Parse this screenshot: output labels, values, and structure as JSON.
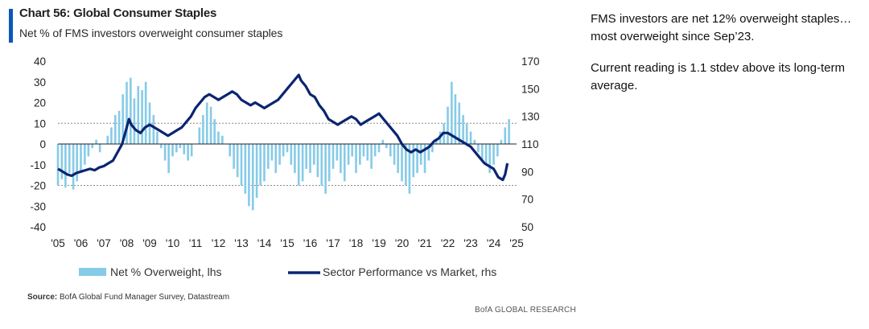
{
  "title": "Chart 56: Global Consumer Staples",
  "subtitle": "Net % of FMS investors overweight consumer staples",
  "notes": [
    "FMS investors are net 12% overweight staples…most overweight since Sep’23.",
    "Current reading is 1.1 stdev above its long-term average."
  ],
  "source_label": "Source:",
  "source_text": "BofA Global Fund Manager Survey, Datastream",
  "brand": "BofA GLOBAL RESEARCH",
  "colors": {
    "bars": "#86cbe8",
    "line": "#0b2570",
    "title_accent": "#0a58b8"
  },
  "chart_data": {
    "type": "bar+line",
    "x_tick_labels": [
      "'05",
      "'06",
      "'07",
      "'08",
      "'09",
      "'10",
      "'11",
      "'12",
      "'13",
      "'14",
      "'15",
      "'16",
      "'17",
      "'18",
      "'19",
      "'20",
      "'21",
      "'22",
      "'23",
      "'24",
      "'25"
    ],
    "x_range": [
      2005.0,
      2025.0
    ],
    "lhs": {
      "ylim": [
        -40,
        40
      ],
      "ticks": [
        40,
        30,
        20,
        10,
        0,
        -10,
        -20,
        -30,
        -40
      ]
    },
    "rhs": {
      "ylim": [
        50,
        170
      ],
      "ticks": [
        170,
        150,
        130,
        110,
        90,
        70,
        50
      ]
    },
    "reference_lines_lhs": [
      10,
      -20
    ],
    "legend": [
      "Net % Overweight, lhs",
      "Sector Performance vs Market, rhs"
    ],
    "series": [
      {
        "name": "Net % Overweight, lhs",
        "kind": "bar",
        "axis": "lhs",
        "points": [
          [
            2005.0,
            -20
          ],
          [
            2005.17,
            -17
          ],
          [
            2005.33,
            -21
          ],
          [
            2005.5,
            -14
          ],
          [
            2005.67,
            -22
          ],
          [
            2005.83,
            -18
          ],
          [
            2006.0,
            -14
          ],
          [
            2006.17,
            -10
          ],
          [
            2006.33,
            -6
          ],
          [
            2006.5,
            -2
          ],
          [
            2006.67,
            2
          ],
          [
            2006.83,
            -4
          ],
          [
            2007.0,
            0
          ],
          [
            2007.17,
            4
          ],
          [
            2007.33,
            8
          ],
          [
            2007.5,
            14
          ],
          [
            2007.67,
            16
          ],
          [
            2007.83,
            24
          ],
          [
            2008.0,
            30
          ],
          [
            2008.17,
            32
          ],
          [
            2008.33,
            22
          ],
          [
            2008.5,
            28
          ],
          [
            2008.67,
            26
          ],
          [
            2008.83,
            30
          ],
          [
            2009.0,
            20
          ],
          [
            2009.17,
            14
          ],
          [
            2009.33,
            6
          ],
          [
            2009.5,
            -2
          ],
          [
            2009.67,
            -8
          ],
          [
            2009.83,
            -14
          ],
          [
            2010.0,
            -6
          ],
          [
            2010.17,
            -4
          ],
          [
            2010.33,
            -2
          ],
          [
            2010.5,
            -5
          ],
          [
            2010.67,
            -8
          ],
          [
            2010.83,
            -6
          ],
          [
            2011.0,
            0
          ],
          [
            2011.17,
            8
          ],
          [
            2011.33,
            14
          ],
          [
            2011.5,
            20
          ],
          [
            2011.67,
            18
          ],
          [
            2011.83,
            12
          ],
          [
            2012.0,
            6
          ],
          [
            2012.17,
            4
          ],
          [
            2012.33,
            0
          ],
          [
            2012.5,
            -6
          ],
          [
            2012.67,
            -12
          ],
          [
            2012.83,
            -16
          ],
          [
            2013.0,
            -20
          ],
          [
            2013.17,
            -24
          ],
          [
            2013.33,
            -30
          ],
          [
            2013.5,
            -32
          ],
          [
            2013.67,
            -26
          ],
          [
            2013.83,
            -20
          ],
          [
            2014.0,
            -18
          ],
          [
            2014.17,
            -12
          ],
          [
            2014.33,
            -8
          ],
          [
            2014.5,
            -14
          ],
          [
            2014.67,
            -10
          ],
          [
            2014.83,
            -6
          ],
          [
            2015.0,
            -4
          ],
          [
            2015.17,
            -10
          ],
          [
            2015.33,
            -14
          ],
          [
            2015.5,
            -20
          ],
          [
            2015.67,
            -18
          ],
          [
            2015.83,
            -12
          ],
          [
            2016.0,
            -14
          ],
          [
            2016.17,
            -10
          ],
          [
            2016.33,
            -16
          ],
          [
            2016.5,
            -20
          ],
          [
            2016.67,
            -24
          ],
          [
            2016.83,
            -18
          ],
          [
            2017.0,
            -12
          ],
          [
            2017.17,
            -8
          ],
          [
            2017.33,
            -14
          ],
          [
            2017.5,
            -18
          ],
          [
            2017.67,
            -10
          ],
          [
            2017.83,
            -6
          ],
          [
            2018.0,
            -14
          ],
          [
            2018.17,
            -10
          ],
          [
            2018.33,
            -6
          ],
          [
            2018.5,
            -8
          ],
          [
            2018.67,
            -12
          ],
          [
            2018.83,
            -6
          ],
          [
            2019.0,
            -4
          ],
          [
            2019.17,
            2
          ],
          [
            2019.33,
            -2
          ],
          [
            2019.5,
            -6
          ],
          [
            2019.67,
            -10
          ],
          [
            2019.83,
            -14
          ],
          [
            2020.0,
            -18
          ],
          [
            2020.17,
            -20
          ],
          [
            2020.33,
            -24
          ],
          [
            2020.5,
            -16
          ],
          [
            2020.67,
            -14
          ],
          [
            2020.83,
            -10
          ],
          [
            2021.0,
            -14
          ],
          [
            2021.17,
            -8
          ],
          [
            2021.33,
            -4
          ],
          [
            2021.5,
            2
          ],
          [
            2021.67,
            6
          ],
          [
            2021.83,
            10
          ],
          [
            2022.0,
            18
          ],
          [
            2022.17,
            30
          ],
          [
            2022.33,
            24
          ],
          [
            2022.5,
            20
          ],
          [
            2022.67,
            14
          ],
          [
            2022.83,
            10
          ],
          [
            2023.0,
            6
          ],
          [
            2023.17,
            2
          ],
          [
            2023.33,
            -4
          ],
          [
            2023.5,
            -8
          ],
          [
            2023.67,
            -10
          ],
          [
            2023.83,
            -14
          ],
          [
            2024.0,
            -10
          ],
          [
            2024.17,
            -6
          ],
          [
            2024.33,
            2
          ],
          [
            2024.5,
            8
          ],
          [
            2024.67,
            12
          ]
        ]
      },
      {
        "name": "Sector Performance vs Market, rhs",
        "kind": "line",
        "axis": "rhs",
        "points": [
          [
            2005.0,
            92
          ],
          [
            2005.2,
            90
          ],
          [
            2005.4,
            88
          ],
          [
            2005.6,
            87
          ],
          [
            2005.8,
            89
          ],
          [
            2006.0,
            90
          ],
          [
            2006.2,
            91
          ],
          [
            2006.4,
            92
          ],
          [
            2006.6,
            91
          ],
          [
            2006.8,
            93
          ],
          [
            2007.0,
            94
          ],
          [
            2007.2,
            96
          ],
          [
            2007.4,
            98
          ],
          [
            2007.6,
            104
          ],
          [
            2007.8,
            110
          ],
          [
            2008.0,
            122
          ],
          [
            2008.1,
            128
          ],
          [
            2008.2,
            124
          ],
          [
            2008.4,
            120
          ],
          [
            2008.6,
            118
          ],
          [
            2008.8,
            122
          ],
          [
            2009.0,
            124
          ],
          [
            2009.2,
            122
          ],
          [
            2009.4,
            120
          ],
          [
            2009.6,
            118
          ],
          [
            2009.8,
            116
          ],
          [
            2010.0,
            118
          ],
          [
            2010.2,
            120
          ],
          [
            2010.4,
            122
          ],
          [
            2010.6,
            126
          ],
          [
            2010.8,
            130
          ],
          [
            2011.0,
            136
          ],
          [
            2011.2,
            140
          ],
          [
            2011.4,
            144
          ],
          [
            2011.6,
            146
          ],
          [
            2011.8,
            144
          ],
          [
            2012.0,
            142
          ],
          [
            2012.2,
            144
          ],
          [
            2012.4,
            146
          ],
          [
            2012.6,
            148
          ],
          [
            2012.8,
            146
          ],
          [
            2013.0,
            142
          ],
          [
            2013.2,
            140
          ],
          [
            2013.4,
            138
          ],
          [
            2013.6,
            140
          ],
          [
            2013.8,
            138
          ],
          [
            2014.0,
            136
          ],
          [
            2014.2,
            138
          ],
          [
            2014.4,
            140
          ],
          [
            2014.6,
            142
          ],
          [
            2014.8,
            146
          ],
          [
            2015.0,
            150
          ],
          [
            2015.2,
            154
          ],
          [
            2015.4,
            158
          ],
          [
            2015.5,
            160
          ],
          [
            2015.6,
            156
          ],
          [
            2015.8,
            152
          ],
          [
            2016.0,
            146
          ],
          [
            2016.2,
            144
          ],
          [
            2016.4,
            138
          ],
          [
            2016.6,
            134
          ],
          [
            2016.8,
            128
          ],
          [
            2017.0,
            126
          ],
          [
            2017.2,
            124
          ],
          [
            2017.4,
            126
          ],
          [
            2017.6,
            128
          ],
          [
            2017.8,
            130
          ],
          [
            2018.0,
            128
          ],
          [
            2018.2,
            124
          ],
          [
            2018.4,
            126
          ],
          [
            2018.6,
            128
          ],
          [
            2018.8,
            130
          ],
          [
            2019.0,
            132
          ],
          [
            2019.2,
            128
          ],
          [
            2019.4,
            124
          ],
          [
            2019.6,
            120
          ],
          [
            2019.8,
            116
          ],
          [
            2020.0,
            110
          ],
          [
            2020.2,
            106
          ],
          [
            2020.4,
            104
          ],
          [
            2020.6,
            106
          ],
          [
            2020.8,
            104
          ],
          [
            2021.0,
            106
          ],
          [
            2021.2,
            108
          ],
          [
            2021.4,
            112
          ],
          [
            2021.6,
            114
          ],
          [
            2021.8,
            118
          ],
          [
            2022.0,
            118
          ],
          [
            2022.2,
            116
          ],
          [
            2022.4,
            114
          ],
          [
            2022.6,
            112
          ],
          [
            2022.8,
            110
          ],
          [
            2023.0,
            108
          ],
          [
            2023.2,
            104
          ],
          [
            2023.4,
            100
          ],
          [
            2023.6,
            96
          ],
          [
            2023.8,
            94
          ],
          [
            2024.0,
            92
          ],
          [
            2024.2,
            86
          ],
          [
            2024.4,
            84
          ],
          [
            2024.5,
            88
          ],
          [
            2024.6,
            96
          ]
        ]
      }
    ]
  }
}
